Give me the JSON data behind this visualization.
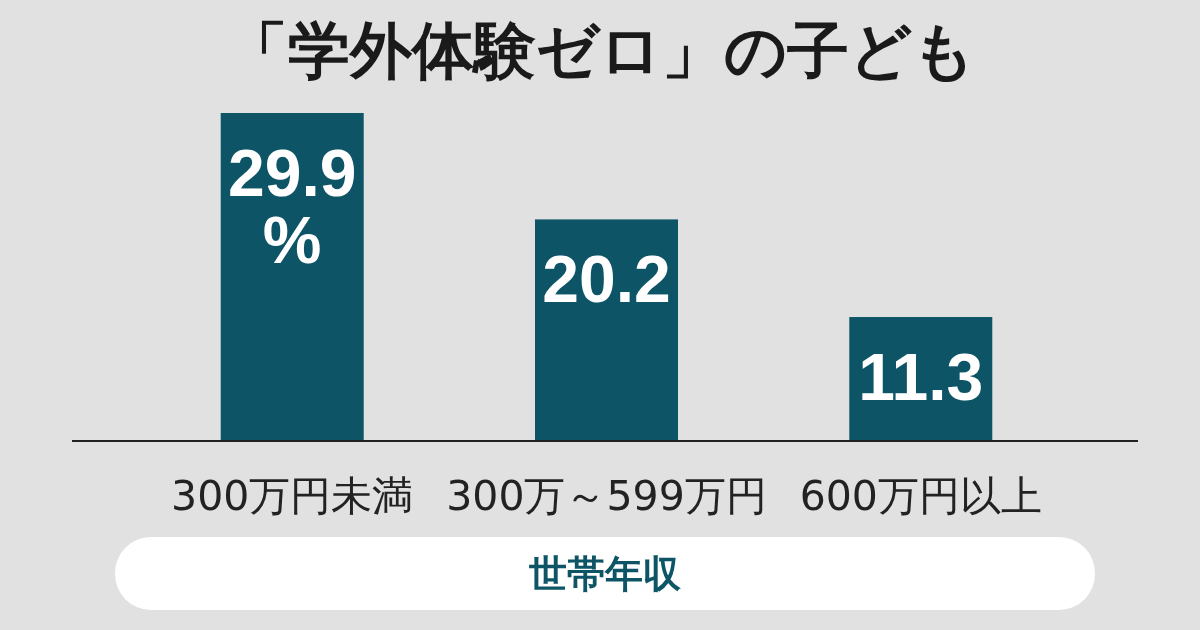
{
  "chart_data": {
    "type": "bar",
    "title": "「学外体験ゼロ」の子ども",
    "xlabel": "世帯年収",
    "categories": [
      "300万円未満",
      "300万～599万円",
      "600万円以上"
    ],
    "values": [
      29.9,
      20.2,
      11.3
    ],
    "value_labels": [
      "29.9\n%",
      "20.2",
      "11.3"
    ],
    "color": "#0d5566"
  }
}
